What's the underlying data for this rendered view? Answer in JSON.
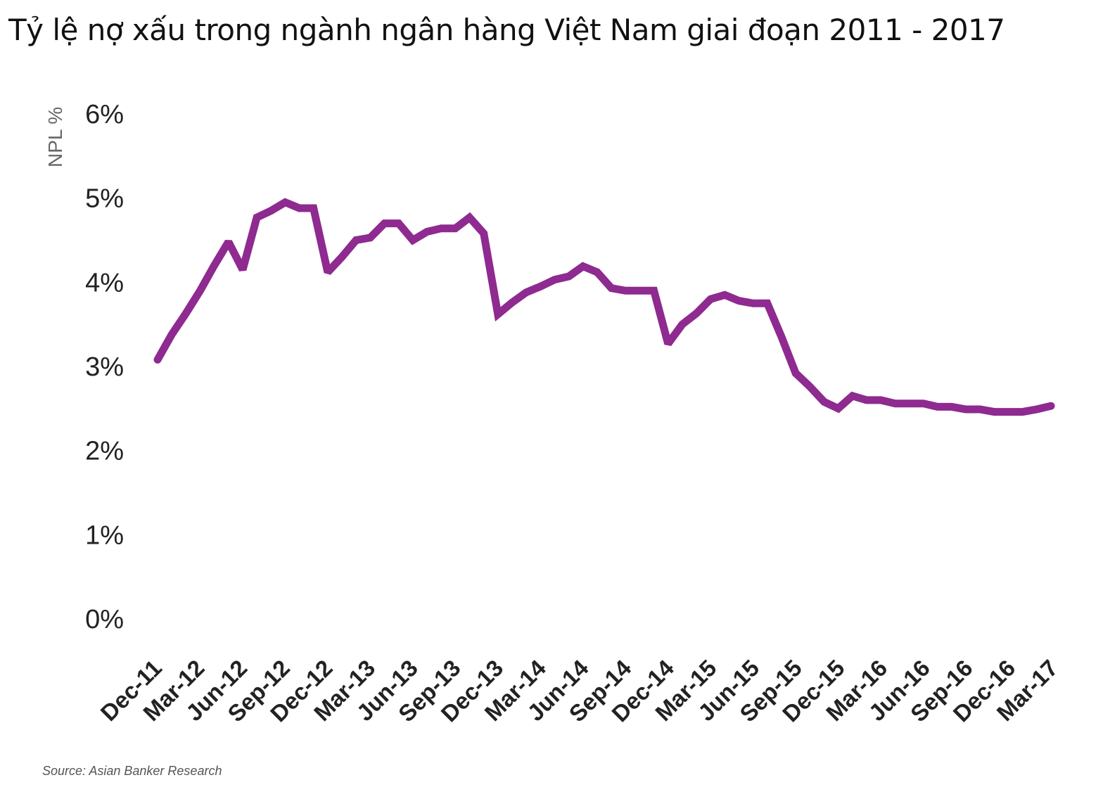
{
  "title": "Tỷ lệ nợ xấu trong ngành ngân hàng Việt Nam giai đoạn 2011 - 2017",
  "source": "Source: Asian Banker Research",
  "chart_data": {
    "type": "line",
    "title": "Tỷ lệ nợ xấu trong ngành ngân hàng Việt Nam giai đoạn 2011 - 2017",
    "ylabel": "NPL %",
    "xlabel": "",
    "ylim": [
      0,
      6
    ],
    "yticks": [
      "0%",
      "1%",
      "2%",
      "3%",
      "4%",
      "5%",
      "6%"
    ],
    "xticks": [
      "Dec-11",
      "Mar-12",
      "Jun-12",
      "Sep-12",
      "Dec-12",
      "Mar-13",
      "Jun-13",
      "Sep-13",
      "Dec-13",
      "Mar-14",
      "Jun-14",
      "Sep-14",
      "Dec-14",
      "Mar-15",
      "Jun-15",
      "Sep-15",
      "Dec-15",
      "Mar-16",
      "Jun-16",
      "Sep-16",
      "Dec-16",
      "Mar-17"
    ],
    "grid": false,
    "color": "#8e2a90",
    "series": [
      {
        "values": [
          3.08,
          3.38,
          3.63,
          3.9,
          4.2,
          4.48,
          4.15,
          4.77,
          4.85,
          4.95,
          4.88,
          4.88,
          4.12,
          4.3,
          4.5,
          4.53,
          4.7,
          4.7,
          4.5,
          4.6,
          4.64,
          4.64,
          4.77,
          4.58,
          3.62,
          3.76,
          3.88,
          3.95,
          4.03,
          4.07,
          4.19,
          4.12,
          3.93,
          3.9,
          3.9,
          3.9,
          3.27,
          3.5,
          3.63,
          3.8,
          3.85,
          3.78,
          3.75,
          3.75,
          3.35,
          2.92,
          2.76,
          2.58,
          2.5,
          2.65,
          2.6,
          2.6,
          2.56,
          2.56,
          2.56,
          2.52,
          2.52,
          2.49,
          2.49,
          2.46,
          2.46,
          2.46,
          2.49,
          2.53
        ]
      }
    ]
  }
}
